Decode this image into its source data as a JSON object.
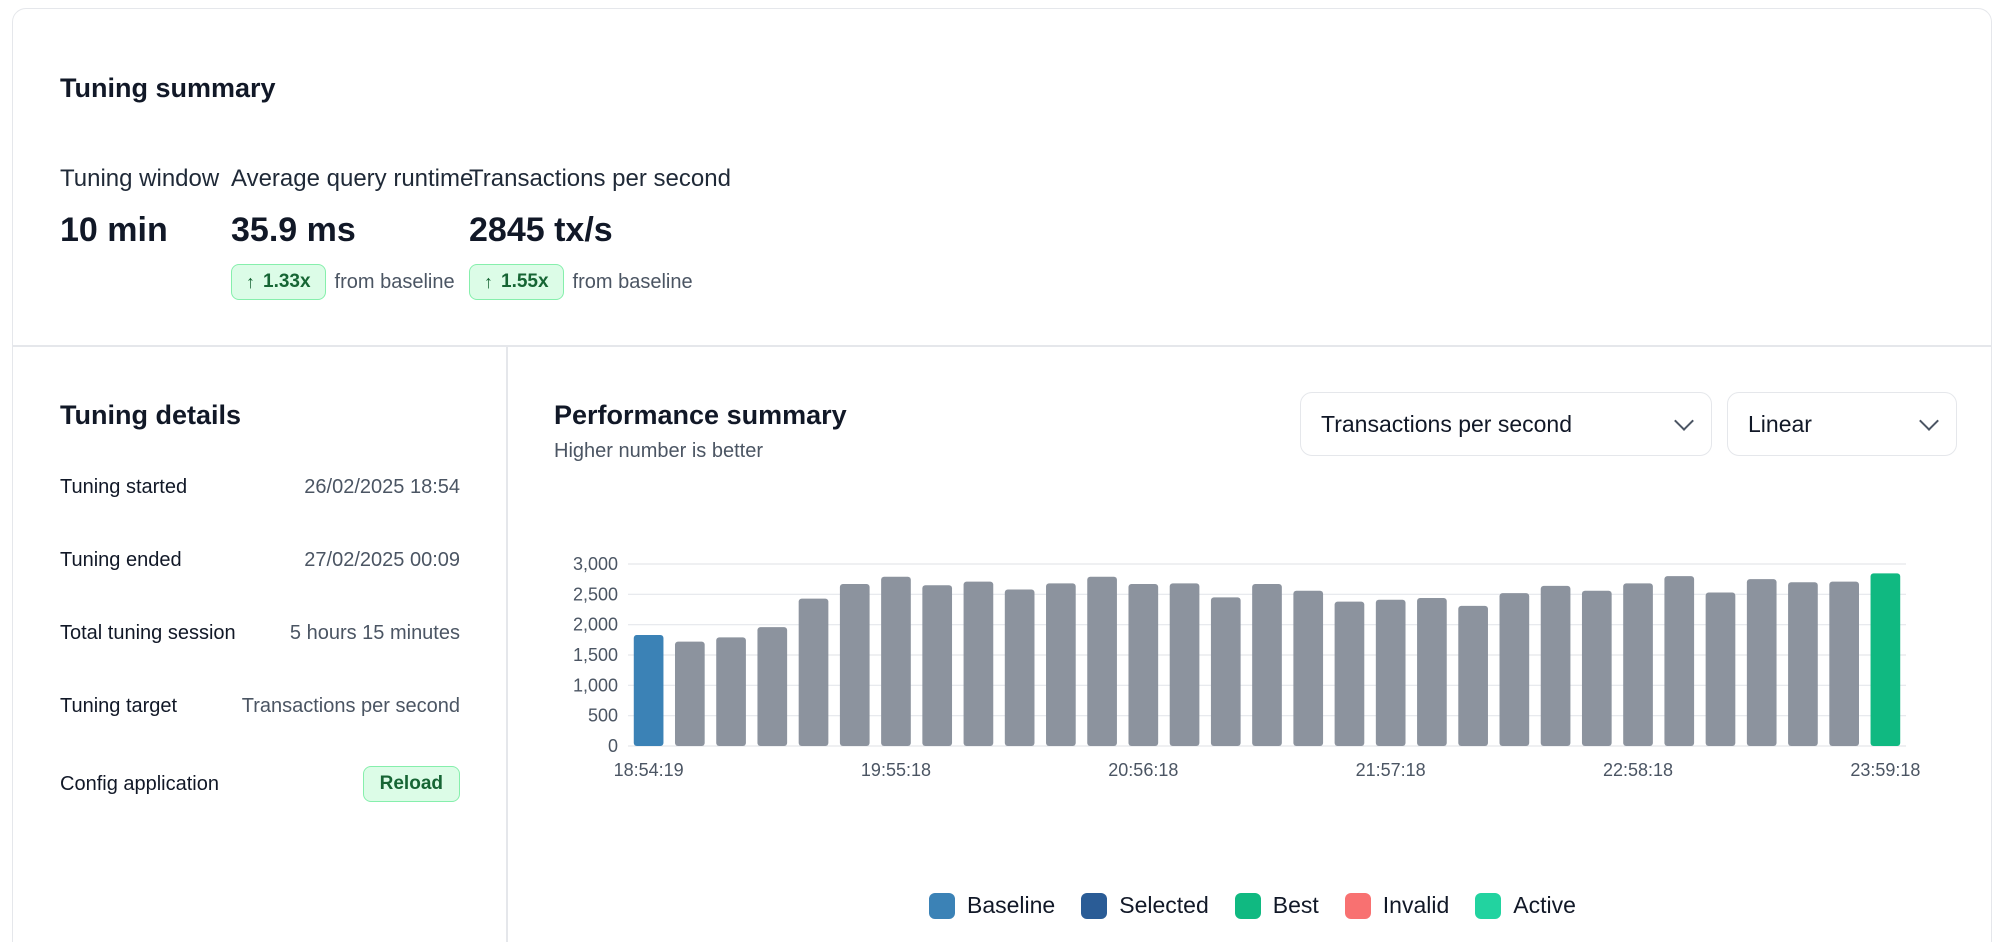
{
  "summary": {
    "title": "Tuning summary",
    "metrics": [
      {
        "label": "Tuning window",
        "value": "10 min"
      },
      {
        "label": "Average query runtime",
        "value": "35.9 ms",
        "delta": "1.33x",
        "delta_note": "from baseline"
      },
      {
        "label": "Transactions per second",
        "value": "2845 tx/s",
        "delta": "1.55x",
        "delta_note": "from baseline"
      }
    ]
  },
  "details": {
    "title": "Tuning details",
    "rows": [
      {
        "key": "Tuning started",
        "value": "26/02/2025 18:54"
      },
      {
        "key": "Tuning ended",
        "value": "27/02/2025 00:09"
      },
      {
        "key": "Total tuning session",
        "value": "5 hours 15 minutes"
      },
      {
        "key": "Tuning target",
        "value": "Transactions per second"
      },
      {
        "key": "Config application",
        "value": "Reload"
      }
    ]
  },
  "performance": {
    "title": "Performance summary",
    "subtitle": "Higher number is better",
    "metric_select": {
      "value": "Transactions per second"
    },
    "scale_select": {
      "value": "Linear"
    },
    "legend": [
      {
        "label": "Baseline",
        "color": "#3b82b6"
      },
      {
        "label": "Selected",
        "color": "#2a5c96"
      },
      {
        "label": "Best",
        "color": "#10b981"
      },
      {
        "label": "Invalid",
        "color": "#f87171"
      },
      {
        "label": "Active",
        "color": "#22d3a0"
      }
    ]
  },
  "colors": {
    "accent_green": "#166534",
    "badge_bg": "#dcfce7",
    "default_bar": "#8c939e",
    "baseline_bar": "#3b82b6",
    "best_bar": "#10b981"
  },
  "chart_data": {
    "type": "bar",
    "ylim": [
      0,
      3000
    ],
    "yticks": [
      0,
      500,
      1000,
      1500,
      2000,
      2500,
      3000
    ],
    "ytick_labels": [
      "0",
      "500",
      "1,000",
      "1,500",
      "2,000",
      "2,500",
      "3,000"
    ],
    "xtick_labels": [
      {
        "index": 0,
        "label": "18:54:19"
      },
      {
        "index": 6,
        "label": "19:55:18"
      },
      {
        "index": 12,
        "label": "20:56:18"
      },
      {
        "index": 18,
        "label": "21:57:18"
      },
      {
        "index": 24,
        "label": "22:58:18"
      },
      {
        "index": 30,
        "label": "23:59:18"
      }
    ],
    "values": [
      1830,
      1720,
      1790,
      1960,
      2430,
      2670,
      2790,
      2650,
      2710,
      2580,
      2680,
      2790,
      2670,
      2680,
      2450,
      2670,
      2560,
      2380,
      2410,
      2440,
      2310,
      2520,
      2640,
      2560,
      2680,
      2800,
      2530,
      2750,
      2700,
      2710,
      2845
    ],
    "categories": [
      "baseline",
      "default",
      "default",
      "default",
      "default",
      "default",
      "default",
      "default",
      "default",
      "default",
      "default",
      "default",
      "default",
      "default",
      "default",
      "default",
      "default",
      "default",
      "default",
      "default",
      "default",
      "default",
      "default",
      "default",
      "default",
      "default",
      "default",
      "default",
      "default",
      "default",
      "best"
    ],
    "grid": true
  }
}
